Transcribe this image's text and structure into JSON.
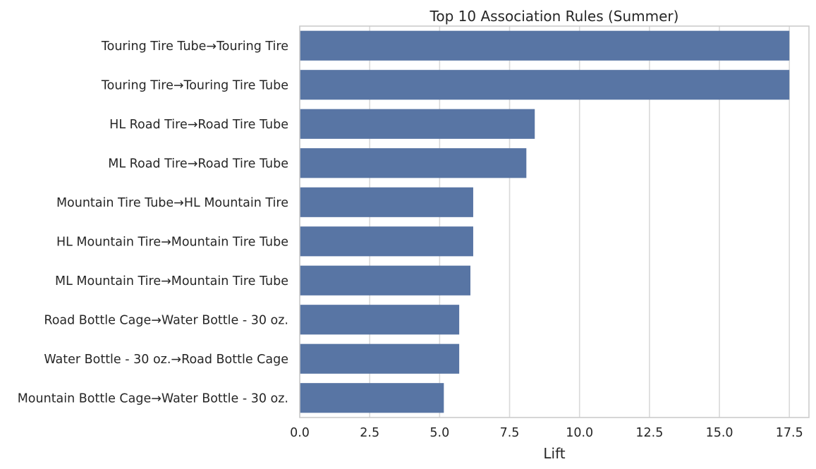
{
  "chart_data": {
    "type": "bar",
    "orientation": "horizontal",
    "title": "Top 10 Association Rules (Summer)",
    "xlabel": "Lift",
    "ylabel": "",
    "xlim": [
      0,
      18.2
    ],
    "xticks": [
      0.0,
      2.5,
      5.0,
      7.5,
      10.0,
      12.5,
      15.0,
      17.5
    ],
    "xtick_labels": [
      "0.0",
      "2.5",
      "5.0",
      "7.5",
      "10.0",
      "12.5",
      "15.0",
      "17.5"
    ],
    "grid": "x-axis vertical lines",
    "bar_color": "#5875a4",
    "categories": [
      "Touring Tire Tube→Touring Tire",
      "Touring Tire→Touring Tire Tube",
      "HL Road Tire→Road Tire Tube",
      "ML Road Tire→Road Tire Tube",
      "Mountain Tire Tube→HL Mountain Tire",
      "HL Mountain Tire→Mountain Tire Tube",
      "ML Mountain Tire→Mountain Tire Tube",
      "Road Bottle Cage→Water Bottle - 30 oz.",
      "Water Bottle - 30 oz.→Road Bottle Cage",
      "Mountain Bottle Cage→Water Bottle - 30 oz."
    ],
    "values": [
      17.5,
      17.5,
      8.4,
      8.1,
      6.2,
      6.2,
      6.1,
      5.7,
      5.7,
      5.15
    ]
  }
}
